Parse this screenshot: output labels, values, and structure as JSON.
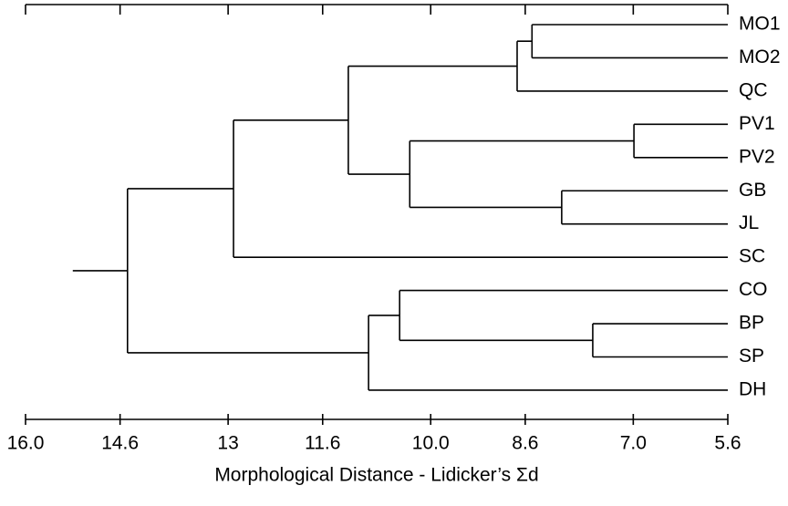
{
  "chart_data": {
    "type": "dendrogram",
    "x_label": "Morphological Distance - Lidicker’s Σd",
    "xlim": [
      16.0,
      5.6
    ],
    "xticks": [
      {
        "value": 16.0,
        "label": "16.0"
      },
      14.6,
      13,
      {
        "value": 11.6,
        "label": "11.6"
      },
      {
        "value": 10.0,
        "label": "10.0"
      },
      8.6,
      {
        "value": 7.0,
        "label": "7.0"
      },
      5.6
    ],
    "leaves": [
      "MO1",
      "MO2",
      "QC",
      "PV1",
      "PV2",
      "GB",
      "JL",
      "SC",
      "CO",
      "BP",
      "SP",
      "DH"
    ],
    "merges": [
      {
        "children": [
          0,
          1
        ],
        "height": 8.5
      },
      {
        "children": [
          12,
          2
        ],
        "height": 8.72
      },
      {
        "children": [
          3,
          4
        ],
        "height": 6.99
      },
      {
        "children": [
          5,
          6
        ],
        "height": 8.06
      },
      {
        "children": [
          14,
          15
        ],
        "height": 10.31
      },
      {
        "children": [
          13,
          16
        ],
        "height": 11.22
      },
      {
        "children": [
          17,
          7
        ],
        "height": 12.92
      },
      {
        "children": [
          9,
          10
        ],
        "height": 7.6
      },
      {
        "children": [
          8,
          19
        ],
        "height": 10.46
      },
      {
        "children": [
          20,
          11
        ],
        "height": 10.92
      },
      {
        "children": [
          18,
          21
        ],
        "height": 14.49
      }
    ]
  }
}
